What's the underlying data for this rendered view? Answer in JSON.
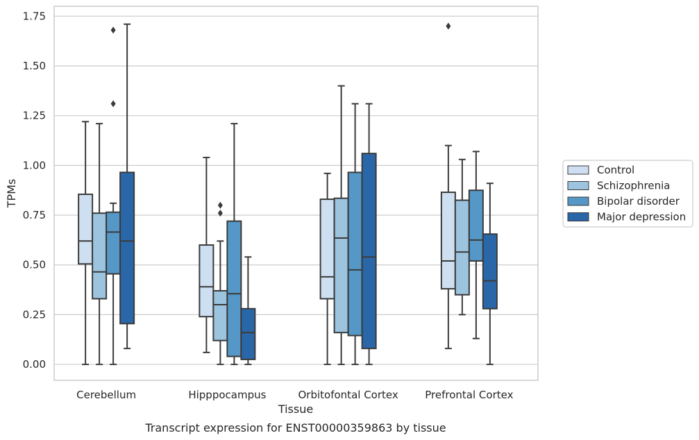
{
  "caption": "Transcript expression for ENST00000359863 by tissue",
  "chart_data": {
    "type": "boxplot",
    "title": "",
    "xlabel": "Tissue",
    "ylabel": "TPMs",
    "ylim": [
      -0.08,
      1.8
    ],
    "yticks": [
      "0.00",
      "0.25",
      "0.50",
      "0.75",
      "1.00",
      "1.25",
      "1.50",
      "1.75"
    ],
    "ytick_values": [
      0,
      0.25,
      0.5,
      0.75,
      1.0,
      1.25,
      1.5,
      1.75
    ],
    "grid": true,
    "legend_position": "right",
    "categories": [
      "Cerebellum",
      "Hipppocampus",
      "Orbitofontal Cortex",
      "Prefrontal Cortex"
    ],
    "series": [
      {
        "name": "Control",
        "color": "#cddff0",
        "boxes": [
          {
            "whislo": 0.0,
            "q1": 0.505,
            "med": 0.62,
            "q3": 0.855,
            "whishi": 1.22,
            "fliers": []
          },
          {
            "whislo": 0.06,
            "q1": 0.24,
            "med": 0.39,
            "q3": 0.6,
            "whishi": 1.04,
            "fliers": []
          },
          {
            "whislo": 0.0,
            "q1": 0.33,
            "med": 0.44,
            "q3": 0.83,
            "whishi": 0.96,
            "fliers": []
          },
          {
            "whislo": 0.08,
            "q1": 0.38,
            "med": 0.52,
            "q3": 0.865,
            "whishi": 1.1,
            "fliers": [
              1.7
            ]
          }
        ]
      },
      {
        "name": "Schizophrenia",
        "color": "#9cc4de",
        "boxes": [
          {
            "whislo": 0.0,
            "q1": 0.33,
            "med": 0.465,
            "q3": 0.76,
            "whishi": 1.21,
            "fliers": []
          },
          {
            "whislo": 0.0,
            "q1": 0.12,
            "med": 0.3,
            "q3": 0.37,
            "whishi": 0.62,
            "fliers": [
              0.76,
              0.8
            ]
          },
          {
            "whislo": 0.0,
            "q1": 0.16,
            "med": 0.635,
            "q3": 0.835,
            "whishi": 1.4,
            "fliers": []
          },
          {
            "whislo": 0.25,
            "q1": 0.35,
            "med": 0.565,
            "q3": 0.825,
            "whishi": 1.03,
            "fliers": []
          }
        ]
      },
      {
        "name": "Bipolar disorder",
        "color": "#5597c6",
        "boxes": [
          {
            "whislo": 0.0,
            "q1": 0.455,
            "med": 0.665,
            "q3": 0.765,
            "whishi": 0.81,
            "fliers": [
              1.31,
              1.68
            ]
          },
          {
            "whislo": 0.0,
            "q1": 0.04,
            "med": 0.355,
            "q3": 0.72,
            "whishi": 1.21,
            "fliers": []
          },
          {
            "whislo": 0.0,
            "q1": 0.145,
            "med": 0.475,
            "q3": 0.965,
            "whishi": 1.31,
            "fliers": []
          },
          {
            "whislo": 0.13,
            "q1": 0.52,
            "med": 0.625,
            "q3": 0.875,
            "whishi": 1.07,
            "fliers": []
          }
        ]
      },
      {
        "name": "Major depression",
        "color": "#2a67a8",
        "boxes": [
          {
            "whislo": 0.08,
            "q1": 0.205,
            "med": 0.62,
            "q3": 0.965,
            "whishi": 1.71,
            "fliers": []
          },
          {
            "whislo": 0.0,
            "q1": 0.025,
            "med": 0.16,
            "q3": 0.28,
            "whishi": 0.54,
            "fliers": []
          },
          {
            "whislo": 0.0,
            "q1": 0.08,
            "med": 0.54,
            "q3": 1.06,
            "whishi": 1.31,
            "fliers": []
          },
          {
            "whislo": 0.0,
            "q1": 0.28,
            "med": 0.42,
            "q3": 0.655,
            "whishi": 0.91,
            "fliers": []
          }
        ]
      }
    ]
  },
  "colors": {
    "grid": "#cccccc",
    "frame": "#cccccc",
    "line": "#3a3a3a",
    "text": "#262626"
  }
}
